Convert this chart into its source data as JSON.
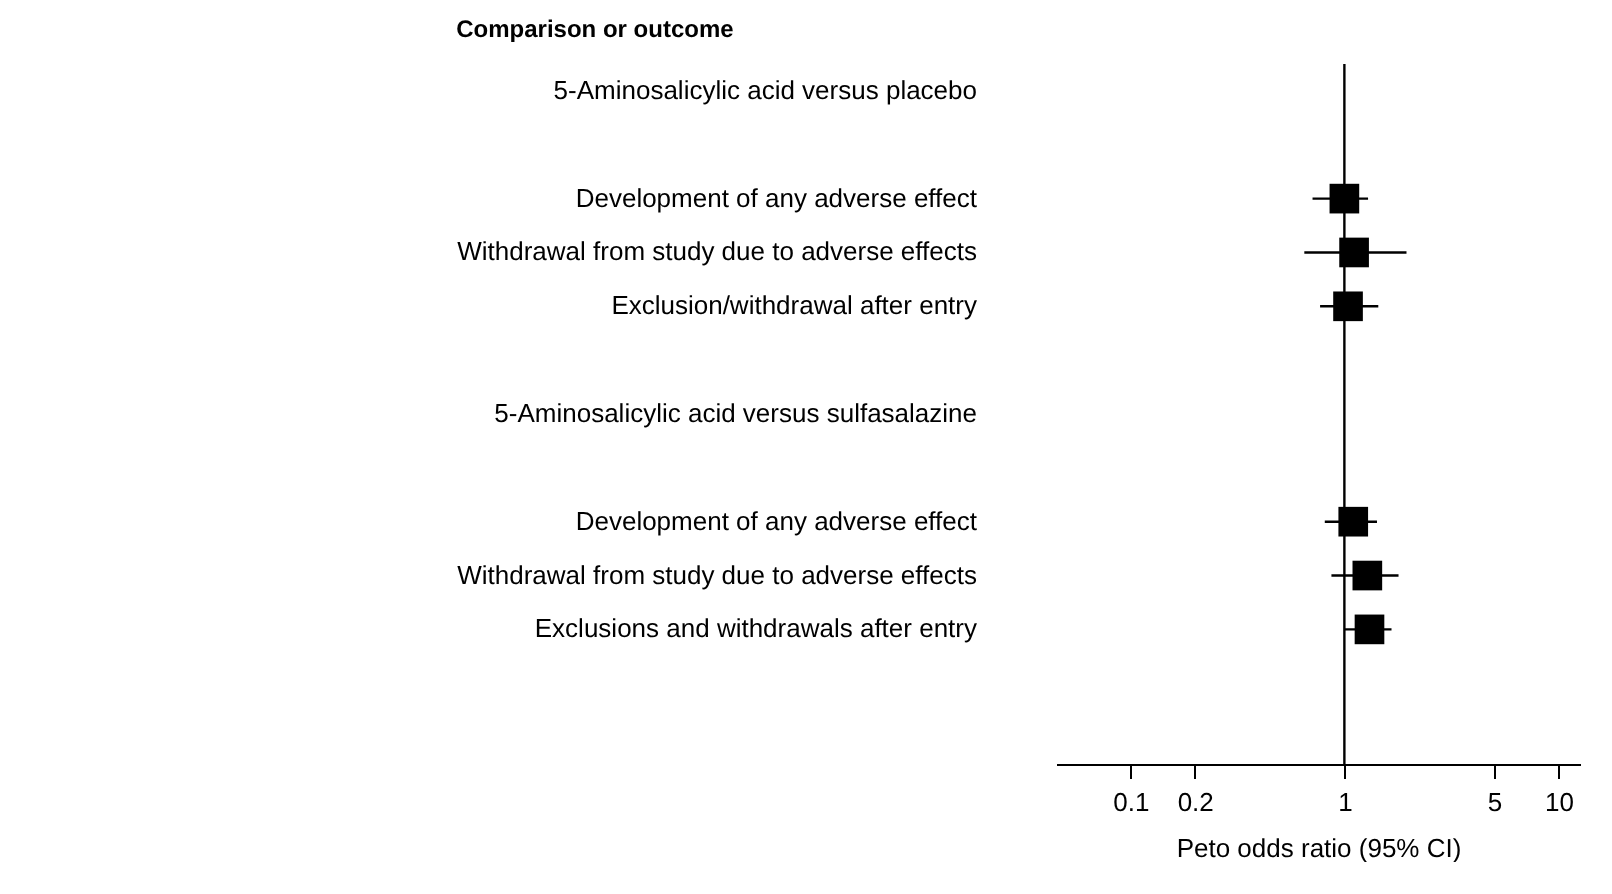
{
  "chart_data": {
    "type": "scatter",
    "title": "Comparison or outcome",
    "xlabel": "Peto odds ratio (95% CI)",
    "categories": [
      "5-Aminosalicylic acid versus placebo",
      null,
      "Development of any adverse effect",
      "Withdrawal from study due to adverse effects",
      "Exclusion/withdrawal after entry",
      null,
      "5-Aminosalicylic acid versus sulfasalazine",
      null,
      "Development of any adverse effect",
      "Withdrawal from study due to adverse effects",
      "Exclusions and withdrawals after entry",
      null,
      null
    ],
    "series": [
      {
        "color": "#000000",
        "values": [
          null,
          null,
          1.0,
          1.11,
          1.04,
          null,
          null,
          null,
          1.1,
          1.28,
          1.31,
          null,
          null
        ],
        "errors": [
          null,
          null,
          [
            0.71,
            1.29
          ],
          [
            0.65,
            1.95
          ],
          [
            0.77,
            1.44
          ],
          null,
          null,
          null,
          [
            0.81,
            1.42
          ],
          [
            0.87,
            1.79
          ],
          [
            1.0,
            1.66
          ],
          null,
          null
        ]
      }
    ],
    "orientation": "horizontal",
    "log": "x",
    "xlim": [
      0.045,
      12.6
    ],
    "xticks": [
      0.1,
      0.2,
      1,
      5,
      10
    ],
    "ref_lines": [
      {
        "axis": "x",
        "value": 1
      }
    ],
    "marker": "square"
  }
}
